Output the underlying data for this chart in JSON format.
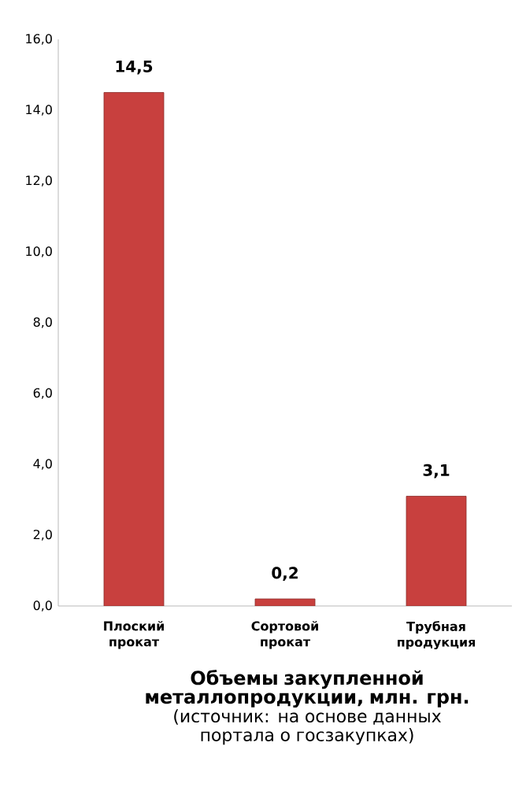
{
  "chart_data": {
    "type": "bar",
    "title": "Объемы закупленной металлопродукции, млн. грн.",
    "subtitle": "(источник: на основе данных портала о госзакупках)",
    "categories": [
      "Плоский  прокат",
      "Сортовой прокат",
      "Трубная продукция"
    ],
    "values": [
      14.5,
      0.2,
      3.1
    ],
    "value_labels": [
      "14,5",
      "0,2",
      "3,1"
    ],
    "color": "#c8403e",
    "ylim": [
      0,
      16
    ],
    "yticks": [
      {
        "value": 0,
        "label": "0,0"
      },
      {
        "value": 2,
        "label": "2,0"
      },
      {
        "value": 4,
        "label": "4,0"
      },
      {
        "value": 6,
        "label": "6,0"
      },
      {
        "value": 8,
        "label": "8,0"
      },
      {
        "value": 10,
        "label": "10,0"
      },
      {
        "value": 12,
        "label": "12,0"
      },
      {
        "value": 14,
        "label": "14,0"
      },
      {
        "value": 16,
        "label": "16,0"
      }
    ],
    "grid": false
  }
}
